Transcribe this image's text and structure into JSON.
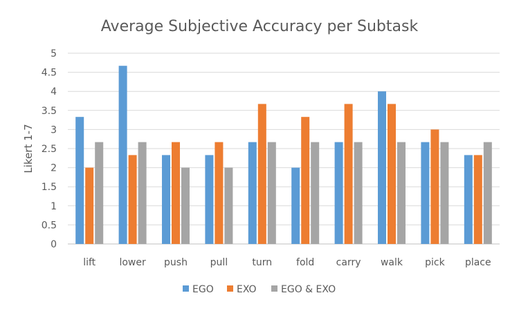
{
  "chart_data": {
    "type": "bar",
    "title": "Average Subjective Accuracy per Subtask",
    "xlabel": "",
    "ylabel": "Likert 1-7",
    "ylim": [
      0,
      5
    ],
    "y_ticks": [
      "0",
      "0.5",
      "1",
      "1.5",
      "2",
      "2.5",
      "3",
      "3.5",
      "4",
      "4.5",
      "5"
    ],
    "grid": true,
    "legend_position": "bottom",
    "categories": [
      "lift",
      "lower",
      "push",
      "pull",
      "turn",
      "fold",
      "carry",
      "walk",
      "pick",
      "place"
    ],
    "series": [
      {
        "name": "EGO",
        "color": "#5B9BD5",
        "values": [
          3.33,
          4.67,
          2.33,
          2.33,
          2.67,
          2.0,
          2.67,
          4.0,
          2.67,
          2.33
        ]
      },
      {
        "name": "EXO",
        "color": "#ED7D31",
        "values": [
          2.0,
          2.33,
          2.67,
          2.67,
          3.67,
          3.33,
          3.67,
          3.67,
          3.0,
          2.33
        ]
      },
      {
        "name": "EGO & EXO",
        "color": "#A5A5A5",
        "values": [
          2.67,
          2.67,
          2.0,
          2.0,
          2.67,
          2.67,
          2.67,
          2.67,
          2.67,
          2.67
        ]
      }
    ]
  }
}
